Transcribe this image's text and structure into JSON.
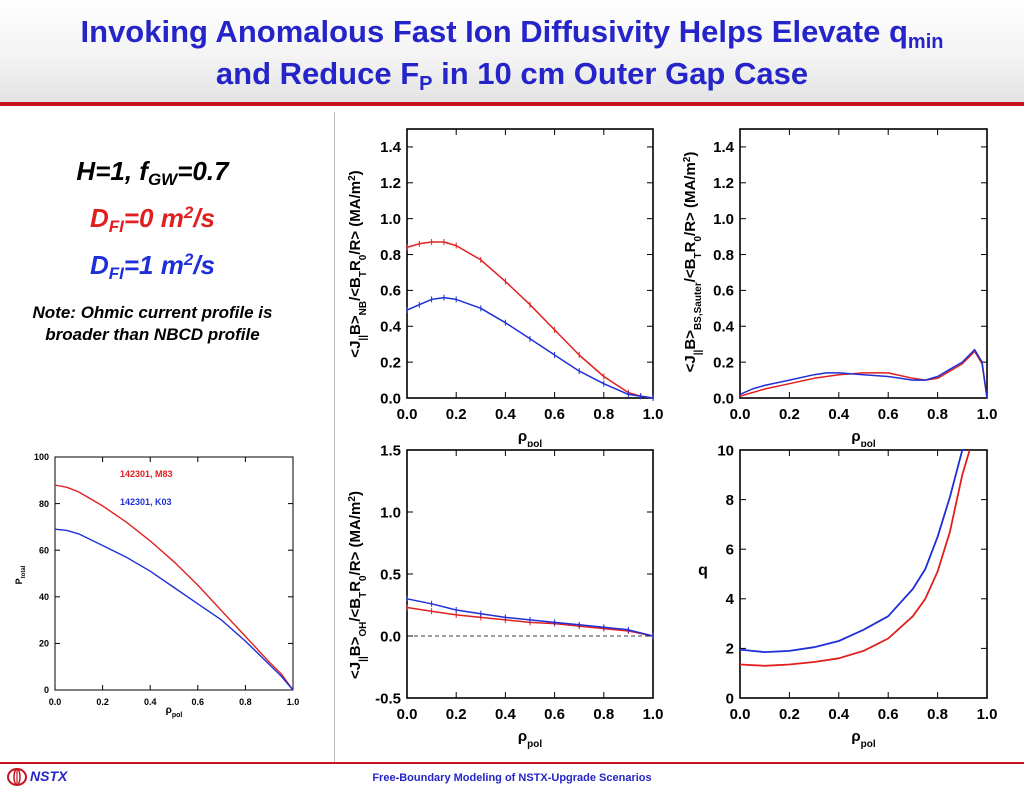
{
  "title": {
    "line1_prefix": "Invoking Anomalous Fast Ion Diffusivity Helps Elevate q",
    "line1_sub": "min",
    "line2_prefix": "and Reduce F",
    "line2_sub": "P",
    "line2_suffix": " in 10 cm Outer Gap Case"
  },
  "case_info": {
    "h_prefix": "H=1, f",
    "h_sub": "GW",
    "h_suffix": "=0.7",
    "d0_prefix": "D",
    "d0_sub": "FI",
    "d0_suffix": "=0 m",
    "d0_sup": "2",
    "d0_unit": "/s",
    "d1_prefix": "D",
    "d1_sub": "FI",
    "d1_suffix": "=1 m",
    "d1_sup": "2",
    "d1_unit": "/s",
    "d0_color": "#e0201f",
    "d1_color": "#1f2fd8"
  },
  "note": "Note: Ohmic current profile is broader than NBCD profile",
  "footer": {
    "org": "NSTX",
    "caption": "Free-Boundary Modeling of NSTX-Upgrade Scenarios",
    "logo_icon": "nstx-logo-icon"
  },
  "colors": {
    "red": "#e0201f",
    "blue": "#1f2fd8",
    "accent": "#c4141e",
    "title": "#2424c8"
  },
  "chart_data": [
    {
      "id": "pressure",
      "type": "line",
      "xlabel": "ρpol",
      "ylabel": "Ptotal",
      "xlim": [
        0,
        1
      ],
      "ylim": [
        0,
        100
      ],
      "xticks": [
        "0.0",
        "0.2",
        "0.4",
        "0.6",
        "0.8",
        "1.0"
      ],
      "yticks": [
        "0",
        "20",
        "40",
        "60",
        "80",
        "100"
      ],
      "legend": [
        "142301, M83",
        "142301, K03"
      ],
      "series": [
        {
          "name": "142301, M83",
          "color": "#e0201f",
          "x": [
            0,
            0.05,
            0.1,
            0.2,
            0.3,
            0.4,
            0.5,
            0.6,
            0.7,
            0.8,
            0.9,
            0.95,
            1.0
          ],
          "y": [
            88,
            87,
            85,
            79,
            72,
            64,
            55,
            45,
            34,
            23,
            12,
            7,
            0
          ]
        },
        {
          "name": "142301, K03",
          "color": "#1f2fd8",
          "x": [
            0,
            0.05,
            0.1,
            0.2,
            0.3,
            0.4,
            0.5,
            0.6,
            0.7,
            0.8,
            0.9,
            0.95,
            1.0
          ],
          "y": [
            69,
            68.5,
            67,
            62,
            57,
            51,
            44,
            37,
            30,
            21,
            11,
            6,
            0
          ]
        }
      ]
    },
    {
      "id": "jnb",
      "type": "line",
      "xlabel": "ρpol",
      "ylabel": "<J||B>NB/<BTR0/R> (MA/m2)",
      "xlim": [
        0,
        1
      ],
      "ylim": [
        0,
        1.5
      ],
      "xticks": [
        "0.0",
        "0.2",
        "0.4",
        "0.6",
        "0.8",
        "1.0"
      ],
      "yticks": [
        "0.0",
        "0.2",
        "0.4",
        "0.6",
        "0.8",
        "1.0",
        "1.2",
        "1.4"
      ],
      "series": [
        {
          "color": "#e0201f",
          "x": [
            0,
            0.05,
            0.1,
            0.15,
            0.2,
            0.3,
            0.4,
            0.5,
            0.6,
            0.7,
            0.8,
            0.9,
            0.95,
            1.0
          ],
          "y": [
            0.84,
            0.86,
            0.87,
            0.87,
            0.85,
            0.77,
            0.65,
            0.52,
            0.38,
            0.24,
            0.12,
            0.03,
            0.01,
            0
          ]
        },
        {
          "color": "#1f2fd8",
          "x": [
            0,
            0.05,
            0.1,
            0.15,
            0.2,
            0.3,
            0.4,
            0.5,
            0.6,
            0.7,
            0.8,
            0.9,
            0.95,
            1.0
          ],
          "y": [
            0.49,
            0.52,
            0.55,
            0.56,
            0.55,
            0.5,
            0.42,
            0.33,
            0.24,
            0.15,
            0.08,
            0.02,
            0.01,
            0
          ]
        }
      ]
    },
    {
      "id": "jbs",
      "type": "line",
      "xlabel": "ρpol",
      "ylabel": "<J||B>BS,Sauter/<BTR0/R> (MA/m2)",
      "xlim": [
        0,
        1
      ],
      "ylim": [
        0,
        1.5
      ],
      "xticks": [
        "0.0",
        "0.2",
        "0.4",
        "0.6",
        "0.8",
        "1.0"
      ],
      "yticks": [
        "0.0",
        "0.2",
        "0.4",
        "0.6",
        "0.8",
        "1.0",
        "1.2",
        "1.4"
      ],
      "series": [
        {
          "color": "#e0201f",
          "x": [
            0,
            0.05,
            0.1,
            0.2,
            0.3,
            0.4,
            0.5,
            0.6,
            0.7,
            0.75,
            0.8,
            0.85,
            0.9,
            0.95,
            0.98,
            1.0
          ],
          "y": [
            0.01,
            0.03,
            0.05,
            0.08,
            0.11,
            0.13,
            0.14,
            0.14,
            0.11,
            0.1,
            0.11,
            0.15,
            0.19,
            0.26,
            0.19,
            0
          ]
        },
        {
          "color": "#1f2fd8",
          "x": [
            0,
            0.05,
            0.1,
            0.2,
            0.3,
            0.35,
            0.4,
            0.5,
            0.6,
            0.7,
            0.75,
            0.8,
            0.85,
            0.9,
            0.95,
            0.98,
            1.0
          ],
          "y": [
            0.02,
            0.05,
            0.07,
            0.1,
            0.13,
            0.14,
            0.14,
            0.13,
            0.12,
            0.1,
            0.1,
            0.12,
            0.16,
            0.2,
            0.27,
            0.2,
            0
          ]
        }
      ]
    },
    {
      "id": "joh",
      "type": "line",
      "xlabel": "ρpol",
      "ylabel": "<J||B>OH/<BTR0/R> (MA/m2)",
      "xlim": [
        0,
        1
      ],
      "ylim": [
        -0.5,
        1.5
      ],
      "xticks": [
        "0.0",
        "0.2",
        "0.4",
        "0.6",
        "0.8",
        "1.0"
      ],
      "yticks": [
        "-0.5",
        "0.0",
        "0.5",
        "1.0",
        "1.5"
      ],
      "series": [
        {
          "color": "#e0201f",
          "x": [
            0,
            0.1,
            0.2,
            0.3,
            0.4,
            0.5,
            0.6,
            0.7,
            0.8,
            0.9,
            1.0
          ],
          "y": [
            0.23,
            0.2,
            0.17,
            0.15,
            0.13,
            0.11,
            0.1,
            0.08,
            0.06,
            0.04,
            0
          ]
        },
        {
          "color": "#1f2fd8",
          "x": [
            0,
            0.1,
            0.2,
            0.3,
            0.4,
            0.5,
            0.6,
            0.7,
            0.8,
            0.9,
            1.0
          ],
          "y": [
            0.3,
            0.26,
            0.21,
            0.18,
            0.15,
            0.13,
            0.11,
            0.09,
            0.07,
            0.05,
            0
          ]
        }
      ]
    },
    {
      "id": "q",
      "type": "line",
      "xlabel": "ρpol",
      "ylabel": "q",
      "xlim": [
        0,
        1
      ],
      "ylim": [
        0,
        10
      ],
      "xticks": [
        "0.0",
        "0.2",
        "0.4",
        "0.6",
        "0.8",
        "1.0"
      ],
      "yticks": [
        "0",
        "2",
        "4",
        "6",
        "8",
        "10"
      ],
      "series": [
        {
          "color": "#e0201f",
          "x": [
            0,
            0.1,
            0.2,
            0.3,
            0.4,
            0.5,
            0.6,
            0.7,
            0.75,
            0.8,
            0.85,
            0.9,
            0.93
          ],
          "y": [
            1.35,
            1.3,
            1.35,
            1.45,
            1.6,
            1.9,
            2.4,
            3.3,
            4.0,
            5.1,
            6.7,
            9.0,
            10.3
          ]
        },
        {
          "color": "#1f2fd8",
          "x": [
            0,
            0.1,
            0.2,
            0.3,
            0.4,
            0.5,
            0.6,
            0.7,
            0.75,
            0.8,
            0.85,
            0.9,
            0.91
          ],
          "y": [
            1.95,
            1.85,
            1.9,
            2.05,
            2.3,
            2.75,
            3.3,
            4.4,
            5.2,
            6.5,
            8.1,
            10.0,
            10.5
          ]
        }
      ]
    }
  ]
}
